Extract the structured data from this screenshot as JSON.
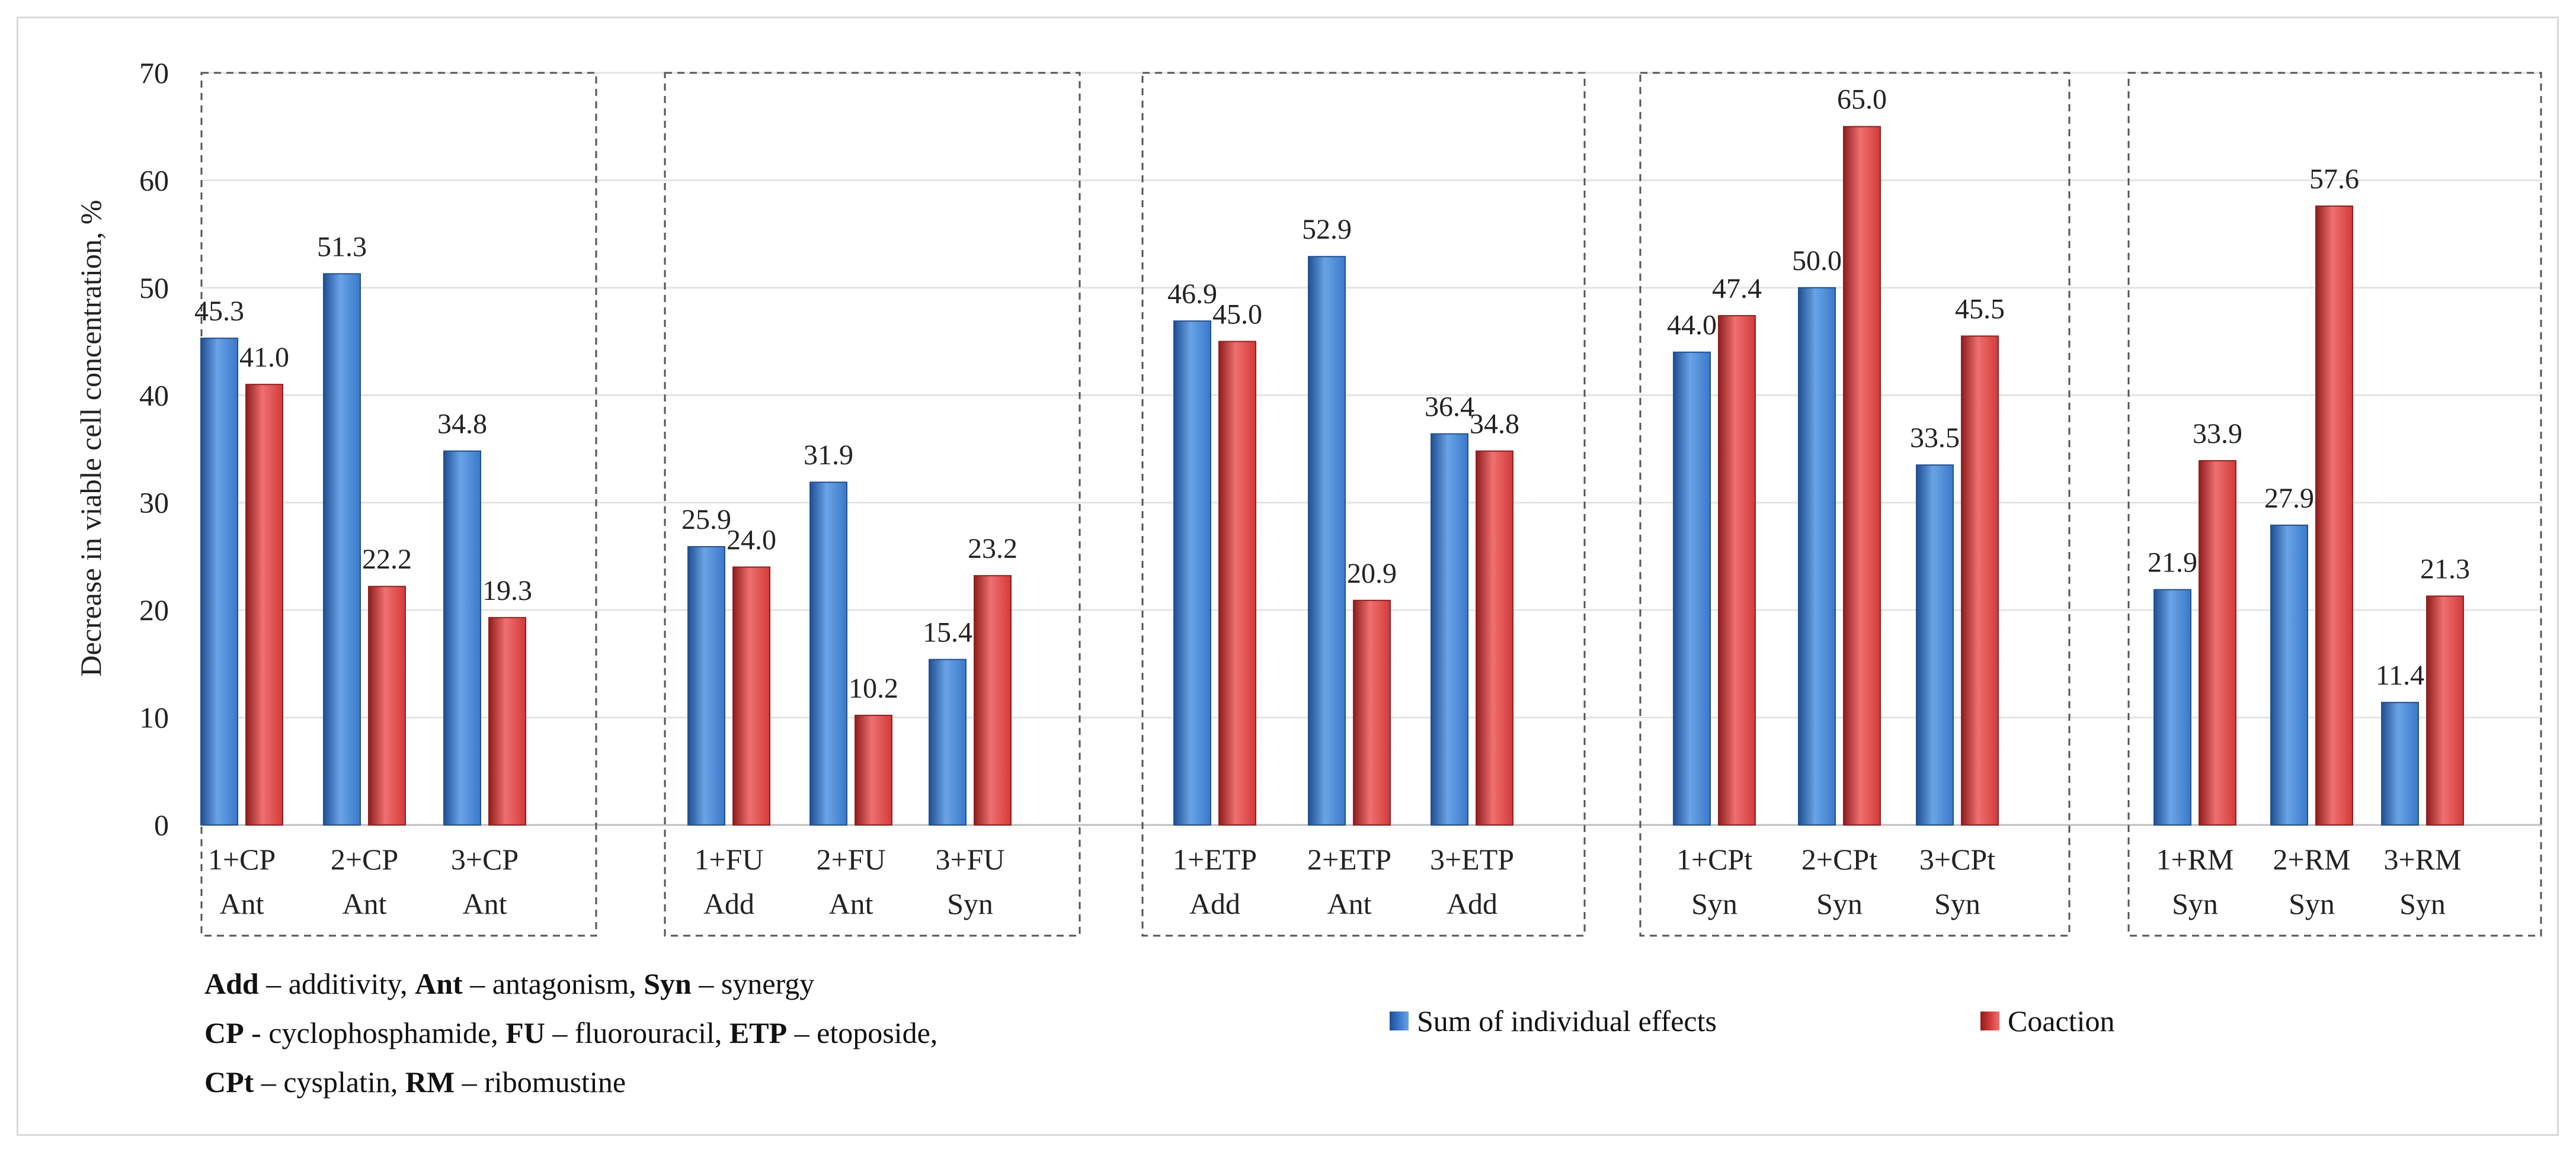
{
  "chart_data": {
    "type": "bar",
    "title": "",
    "xlabel": "",
    "ylabel": "Decrease in viable cell concentration, %",
    "ylim": [
      0,
      70
    ],
    "yticks": [
      0,
      10,
      20,
      30,
      40,
      50,
      60,
      70
    ],
    "grid": true,
    "series_names": [
      "Sum of individual effects",
      "Coaction"
    ],
    "colors": {
      "sum": "#3a78c9",
      "coaction": "#d23a3a"
    },
    "groups": [
      {
        "name": "CP",
        "categories": [
          {
            "label": "1+CP",
            "effect": "Ant",
            "sum": 45.3,
            "coaction": 41.0
          },
          {
            "label": "2+CP",
            "effect": "Ant",
            "sum": 51.3,
            "coaction": 22.2
          },
          {
            "label": "3+CP",
            "effect": "Ant",
            "sum": 34.8,
            "coaction": 19.3
          }
        ]
      },
      {
        "name": "FU",
        "categories": [
          {
            "label": "1+FU",
            "effect": "Add",
            "sum": 25.9,
            "coaction": 24.0
          },
          {
            "label": "2+FU",
            "effect": "Ant",
            "sum": 31.9,
            "coaction": 10.2
          },
          {
            "label": "3+FU",
            "effect": "Syn",
            "sum": 15.4,
            "coaction": 23.2
          }
        ]
      },
      {
        "name": "ETP",
        "categories": [
          {
            "label": "1+ETP",
            "effect": "Add",
            "sum": 46.9,
            "coaction": 45.0
          },
          {
            "label": "2+ETP",
            "effect": "Ant",
            "sum": 52.9,
            "coaction": 20.9
          },
          {
            "label": "3+ETP",
            "effect": "Add",
            "sum": 36.4,
            "coaction": 34.8
          }
        ]
      },
      {
        "name": "CPt",
        "categories": [
          {
            "label": "1+CPt",
            "effect": "Syn",
            "sum": 44.0,
            "coaction": 47.4
          },
          {
            "label": "2+CPt",
            "effect": "Syn",
            "sum": 50.0,
            "coaction": 65.0
          },
          {
            "label": "3+CPt",
            "effect": "Syn",
            "sum": 33.5,
            "coaction": 45.5
          }
        ]
      },
      {
        "name": "RM",
        "categories": [
          {
            "label": "1+RM",
            "effect": "Syn",
            "sum": 21.9,
            "coaction": 33.9
          },
          {
            "label": "2+RM",
            "effect": "Syn",
            "sum": 27.9,
            "coaction": 57.6
          },
          {
            "label": "3+RM",
            "effect": "Syn",
            "sum": 11.4,
            "coaction": 21.3
          }
        ]
      }
    ]
  },
  "notes": {
    "line1": [
      {
        "b": "Add",
        "t": " – additivity,  "
      },
      {
        "b": "Ant",
        "t": " – antagonism, "
      },
      {
        "b": "Syn",
        "t": " – synergy"
      }
    ],
    "line2": [
      {
        "b": "CP",
        "t": " - cyclophosphamide, "
      },
      {
        "b": "FU",
        "t": " – fluorouracil, "
      },
      {
        "b": "ETP",
        "t": " – etoposide,"
      }
    ],
    "line3": [
      {
        "b": "CPt",
        "t": " – cysplatin, "
      },
      {
        "b": "RM",
        "t": " – ribomustine"
      }
    ]
  }
}
